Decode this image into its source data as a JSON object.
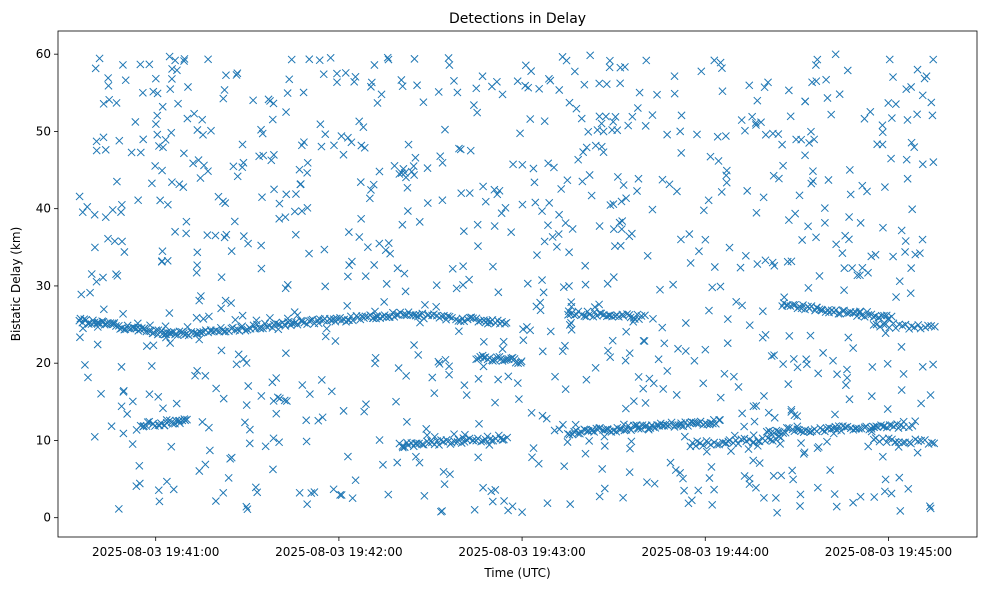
{
  "chart_data": {
    "type": "scatter",
    "title": "Detections in Delay",
    "xlabel": "Time (UTC)",
    "ylabel": "Bistatic Delay (km)",
    "x_ticks": [
      "2025-08-03 19:41:00",
      "2025-08-03 19:42:00",
      "2025-08-03 19:43:00",
      "2025-08-03 19:44:00",
      "2025-08-03 19:45:00"
    ],
    "y_ticks": [
      0,
      10,
      20,
      30,
      40,
      50,
      60
    ],
    "xlim": [
      "2025-08-03 19:40:28",
      "2025-08-03 19:45:29"
    ],
    "ylim": [
      -2.5,
      63
    ],
    "marker": "x",
    "color": "#1f77b4",
    "grid": false,
    "series": [
      {
        "segments": [
          {
            "x_start": "2025-08-03 19:40:35",
            "x_end": "2025-08-03 19:41:05",
            "y_start": 25.6,
            "y_end": 23.7,
            "count": 55
          },
          {
            "x_start": "2025-08-03 19:41:05",
            "x_end": "2025-08-03 19:42:25",
            "y_start": 23.7,
            "y_end": 26.5,
            "count": 120
          },
          {
            "x_start": "2025-08-03 19:42:25",
            "x_end": "2025-08-03 19:42:55",
            "y_start": 26.2,
            "y_end": 25.2,
            "count": 40
          },
          {
            "x_start": "2025-08-03 19:43:15",
            "x_end": "2025-08-03 19:43:40",
            "y_start": 26.5,
            "y_end": 26.0,
            "count": 35
          },
          {
            "x_start": "2025-08-03 19:44:25",
            "x_end": "2025-08-03 19:45:00",
            "y_start": 27.5,
            "y_end": 26.0,
            "count": 50
          },
          {
            "x_start": "2025-08-03 19:40:55",
            "x_end": "2025-08-03 19:41:10",
            "y_start": 12.0,
            "y_end": 12.4,
            "count": 25
          },
          {
            "x_start": "2025-08-03 19:42:20",
            "x_end": "2025-08-03 19:42:55",
            "y_start": 9.3,
            "y_end": 10.4,
            "count": 50
          },
          {
            "x_start": "2025-08-03 19:43:15",
            "x_end": "2025-08-03 19:44:05",
            "y_start": 11.0,
            "y_end": 12.5,
            "count": 80
          },
          {
            "x_start": "2025-08-03 19:43:55",
            "x_end": "2025-08-03 19:44:25",
            "y_start": 9.5,
            "y_end": 10.3,
            "count": 35
          },
          {
            "x_start": "2025-08-03 19:44:20",
            "x_end": "2025-08-03 19:45:05",
            "y_start": 11.2,
            "y_end": 11.8,
            "count": 60
          },
          {
            "x_start": "2025-08-03 19:42:45",
            "x_end": "2025-08-03 19:43:00",
            "y_start": 20.8,
            "y_end": 20.3,
            "count": 25
          },
          {
            "x_start": "2025-08-03 19:44:55",
            "x_end": "2025-08-03 19:45:15",
            "y_start": 25.0,
            "y_end": 24.5,
            "count": 20
          },
          {
            "x_start": "2025-08-03 19:44:55",
            "x_end": "2025-08-03 19:45:15",
            "y_start": 10.0,
            "y_end": 9.8,
            "count": 20
          }
        ],
        "noise": {
          "x_range": [
            "2025-08-03 19:40:35",
            "2025-08-03 19:45:15"
          ],
          "y_range": [
            0.5,
            60
          ],
          "count": 950
        }
      }
    ]
  }
}
